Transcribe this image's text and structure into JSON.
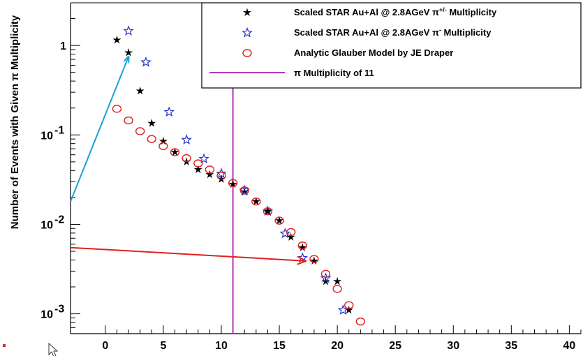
{
  "chart_data": {
    "type": "scatter",
    "ylabel": "Number of Events with Given π Multiplicity",
    "xlabel": "",
    "xlim": [
      -3,
      41
    ],
    "ylim": [
      0.0006,
      3.0
    ],
    "y_scale": "log",
    "x_ticks": [
      "0",
      "5",
      "10",
      "15",
      "20",
      "25",
      "30",
      "35",
      "40"
    ],
    "y_ticks": [
      {
        "value": 1,
        "base": "1",
        "exp": ""
      },
      {
        "value": 0.1,
        "base": "10",
        "exp": "-1"
      },
      {
        "value": 0.01,
        "base": "10",
        "exp": "-2"
      },
      {
        "value": 0.001,
        "base": "10",
        "exp": "-3"
      }
    ],
    "grid": false,
    "legend_position": "top-right",
    "series": [
      {
        "name": "Scaled STAR Au+Al @ 2.8AGeV π+/- Multiplicity",
        "name_parts": {
          "pre": "Scaled STAR Au+Al @ 2.8AGeV π",
          "sup": "+/-",
          "post": " Multiplicity"
        },
        "marker": "black-star",
        "color": "#000000",
        "x": [
          1,
          2,
          3,
          4,
          5,
          6,
          7,
          8,
          9,
          10,
          11,
          12,
          13,
          14,
          15,
          16,
          17,
          18,
          19,
          20,
          21
        ],
        "y": [
          1.15,
          0.83,
          0.31,
          0.135,
          0.085,
          0.064,
          0.05,
          0.041,
          0.036,
          0.032,
          0.028,
          0.023,
          0.018,
          0.014,
          0.011,
          0.0072,
          0.0055,
          0.0039,
          0.0023,
          0.0023,
          0.0011
        ]
      },
      {
        "name": "Scaled STAR Au+Al @ 2.8AGeV π- Multiplicity",
        "name_parts": {
          "pre": "Scaled STAR Au+Al @ 2.8AGeV π",
          "sup": "-",
          "post": " Multiplicity"
        },
        "marker": "blue-star",
        "color": "#2233cc",
        "x": [
          2,
          3.5,
          5.5,
          7,
          8.5,
          10,
          12,
          14,
          15.5,
          17,
          19,
          20.5
        ],
        "y": [
          1.45,
          0.65,
          0.18,
          0.088,
          0.054,
          0.037,
          0.024,
          0.014,
          0.0079,
          0.0042,
          0.0025,
          0.0011
        ]
      },
      {
        "name": "Analytic Glauber Model by JE Draper",
        "marker": "red-circle",
        "color": "#e02020",
        "x": [
          1,
          2,
          3,
          4,
          5,
          6,
          7,
          8,
          9,
          10,
          11,
          12,
          13,
          14,
          15,
          16,
          17,
          18,
          19,
          20,
          21,
          22
        ],
        "y": [
          0.196,
          0.145,
          0.11,
          0.09,
          0.075,
          0.064,
          0.055,
          0.048,
          0.041,
          0.035,
          0.029,
          0.024,
          0.018,
          0.014,
          0.011,
          0.0082,
          0.0058,
          0.0041,
          0.0028,
          0.0019,
          0.00125,
          0.00082
        ]
      }
    ],
    "reference_line": {
      "name": "π Multiplicity of 11",
      "x": 11,
      "color": "#b03ab8"
    },
    "annotations": [
      {
        "type": "arrow",
        "color": "#1ca0d8",
        "from": [
          -3,
          0.018
        ],
        "to": [
          2,
          0.75
        ]
      },
      {
        "type": "arrow",
        "color": "#e02020",
        "from": [
          -3,
          0.0055
        ],
        "to": [
          17.3,
          0.0039
        ]
      }
    ]
  }
}
